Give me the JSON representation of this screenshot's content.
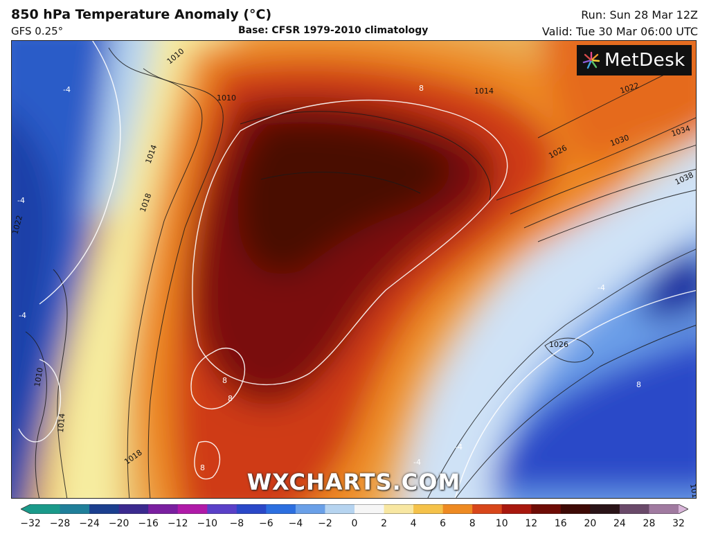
{
  "header": {
    "title": "850 hPa Temperature Anomaly (°C)",
    "model": "GFS 0.25°",
    "base": "Base: CFSR 1979-2010 climatology",
    "run": "Run: Sun 28 Mar 12Z",
    "valid": "Valid: Tue 30 Mar 06:00 UTC"
  },
  "branding": {
    "logo_text": "MetDesk",
    "watermark": "WXCHARTS.COM"
  },
  "map": {
    "isobar_labels": [
      "1010",
      "1010",
      "1014",
      "1018",
      "1022",
      "1026",
      "1030",
      "1034",
      "1038",
      "1022",
      "1014",
      "1010",
      "1014",
      "1018",
      "1026",
      "1018"
    ],
    "anomaly_labels": [
      "-4",
      "-4",
      "-4",
      "-4",
      "8",
      "8",
      "8",
      "8",
      "-4",
      "-4",
      "8"
    ]
  },
  "colorbar": {
    "ticks": [
      "−32",
      "−28",
      "−24",
      "−20",
      "−16",
      "−12",
      "−10",
      "−8",
      "−6",
      "−4",
      "−2",
      "0",
      "2",
      "4",
      "6",
      "8",
      "10",
      "12",
      "16",
      "20",
      "24",
      "28",
      "32"
    ],
    "colors": [
      "#1a9a8a",
      "#1f7f9a",
      "#1b3f8f",
      "#3b2a8f",
      "#7a1fa0",
      "#b01aa8",
      "#5a40c8",
      "#2a48c8",
      "#2c6fe0",
      "#6aa0e8",
      "#b6d4f0",
      "#f6f6f6",
      "#f8e7a2",
      "#f5c24a",
      "#ee8a22",
      "#d8461a",
      "#a8180e",
      "#6e0c06",
      "#3e0a06",
      "#2a1418",
      "#6a4a6a",
      "#a07aa0",
      "#d8b4d8"
    ]
  }
}
